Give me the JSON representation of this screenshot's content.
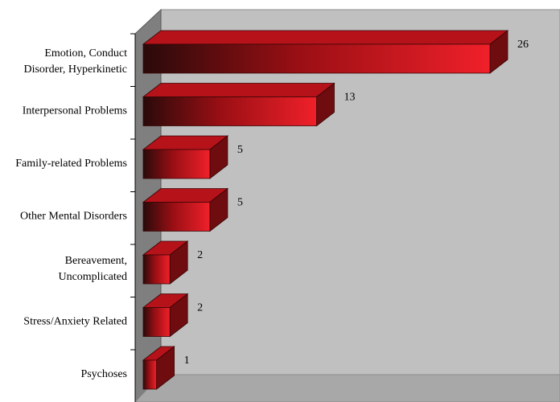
{
  "chart_data": {
    "type": "bar",
    "orientation": "horizontal",
    "three_d": true,
    "categories": [
      "Emotion, Conduct Disorder, Hyperkinetic",
      "Interpersonal Problems",
      "Family-related Problems",
      "Other Mental Disorders",
      "Bereavement, Uncomplicated",
      "Stress/Anxiety Related",
      "Psychoses"
    ],
    "category_label_lines": [
      [
        "Emotion, Conduct",
        "Disorder, Hyperkinetic"
      ],
      [
        "Interpersonal Problems"
      ],
      [
        "Family-related Problems"
      ],
      [
        "Other Mental Disorders"
      ],
      [
        "Bereavement,",
        "Uncomplicated"
      ],
      [
        "Stress/Anxiety Related"
      ],
      [
        "Psychoses"
      ]
    ],
    "values": [
      26,
      13,
      5,
      5,
      2,
      2,
      1
    ],
    "xlim": [
      0,
      30
    ],
    "title": "",
    "xlabel": "",
    "ylabel": "",
    "legend": "none",
    "grid": false,
    "colors": {
      "bar_dark": "#2a0a0a",
      "bar_mid": "#9a0f14",
      "bar_bright": "#f0202a",
      "bar_top": "#b5121a",
      "bar_side": "#6e0c10",
      "wall": "#c0c0c0",
      "wall_side": "#7f7f7f",
      "axis": "#000000"
    }
  }
}
